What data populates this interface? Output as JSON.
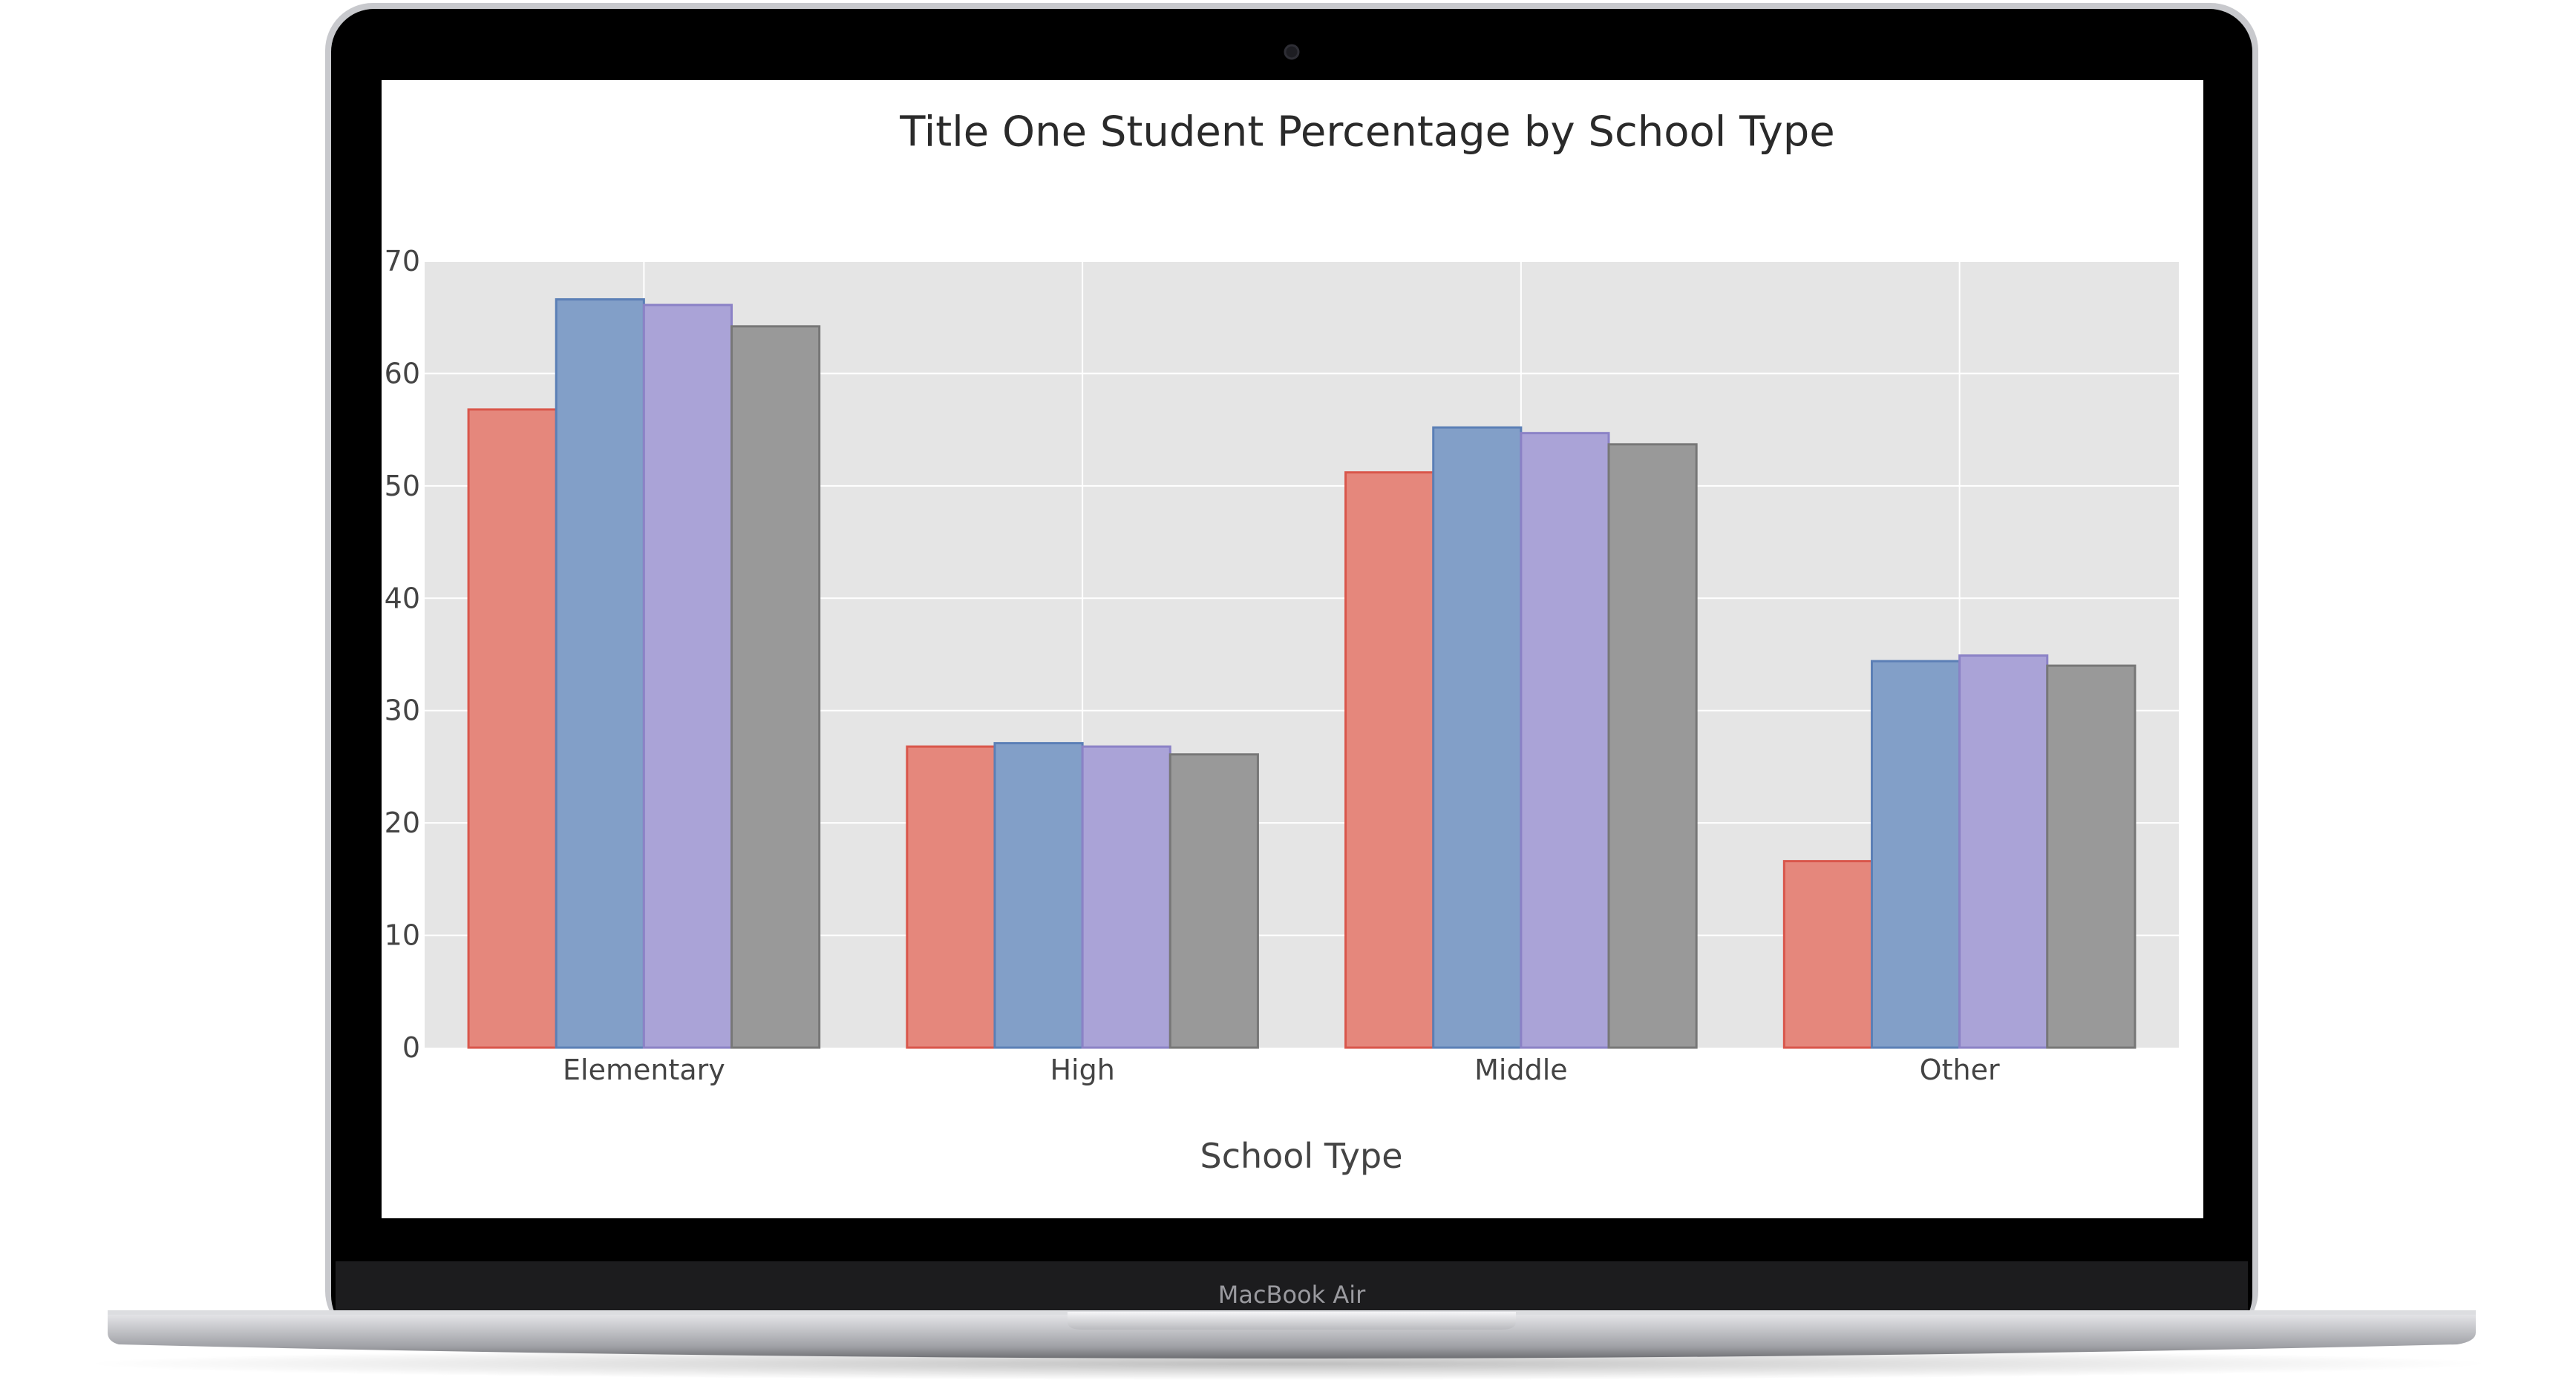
{
  "device": {
    "brand_label": "MacBook Air"
  },
  "colors": {
    "plot_bg": "#e5e5e5",
    "grid": "#ffffff",
    "text": "#444444",
    "title_text": "#2a2a2a"
  },
  "chart_data": {
    "type": "bar",
    "title": "Title One Student Percentage by School Type",
    "xlabel": "School Type",
    "ylabel": "",
    "categories": [
      "Elementary",
      "High",
      "Middle",
      "Other"
    ],
    "ylim": [
      0,
      70
    ],
    "yticks": [
      0,
      10,
      20,
      30,
      40,
      50,
      60,
      70
    ],
    "grid": true,
    "legend": "none",
    "series": [
      {
        "values": [
          56.8,
          26.8,
          51.2,
          16.6
        ],
        "color": "#e5877c",
        "border": "#d9564b"
      },
      {
        "values": [
          66.6,
          27.1,
          55.2,
          34.4
        ],
        "color": "#829fc8",
        "border": "#5b7fb6"
      },
      {
        "values": [
          66.1,
          26.8,
          54.7,
          34.9
        ],
        "color": "#aaa3d7",
        "border": "#8b82c6"
      },
      {
        "values": [
          64.2,
          26.1,
          53.7,
          34.0
        ],
        "color": "#999999",
        "border": "#777777"
      }
    ]
  }
}
